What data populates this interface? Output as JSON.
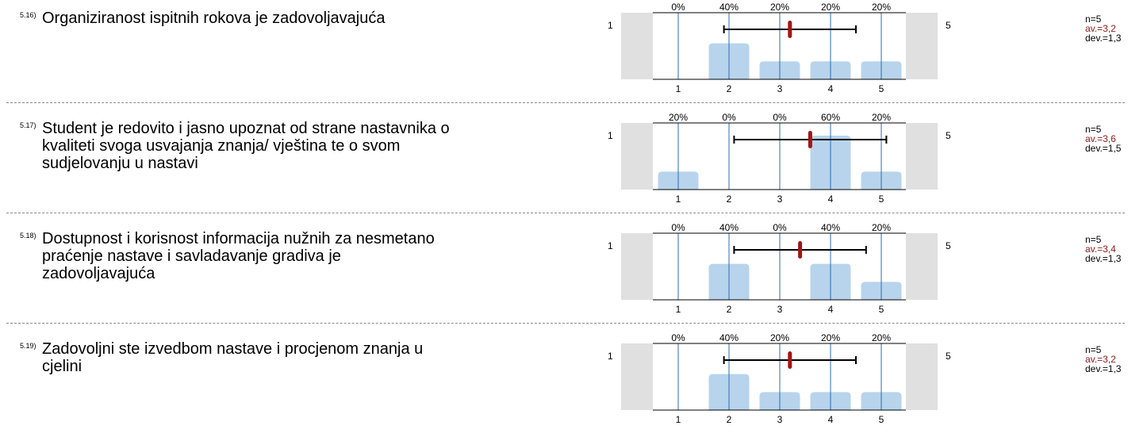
{
  "questions": [
    {
      "id": "5.16)",
      "text": "Organiziranost ispitnih rokova je zadovoljavajuća",
      "n": "n=5",
      "avg": "av.=3,2",
      "dev": "dev.=1,3"
    },
    {
      "id": "5.17)",
      "text": "Student je redovito i jasno upoznat od strane nastavnika o kvaliteti svoga usvajanja znanja/ vještina te o svom sudjelovanju u nastavi",
      "n": "n=5",
      "avg": "av.=3,6",
      "dev": "dev.=1,5"
    },
    {
      "id": "5.18)",
      "text": "Dostupnost i korisnost informacija nužnih za nesmetano praćenje nastave i savladavanje gradiva je zadovoljavajuća",
      "n": "n=5",
      "avg": "av.=3,4",
      "dev": "dev.=1,3"
    },
    {
      "id": "5.19)",
      "text": "Zadovoljni ste  izvedbom nastave i procjenom znanja u cjelini",
      "n": "n=5",
      "avg": "av.=3,2",
      "dev": "dev.=1,3"
    }
  ],
  "chart_data": [
    {
      "type": "bar",
      "categories": [
        "1",
        "2",
        "3",
        "4",
        "5"
      ],
      "values": [
        0,
        40,
        20,
        20,
        20
      ],
      "labels": [
        "0%",
        "40%",
        "20%",
        "20%",
        "20%"
      ],
      "mean": 3.2,
      "deviation": 1.3,
      "scale_left": "1",
      "scale_right": "5"
    },
    {
      "type": "bar",
      "categories": [
        "1",
        "2",
        "3",
        "4",
        "5"
      ],
      "values": [
        20,
        0,
        0,
        60,
        20
      ],
      "labels": [
        "20%",
        "0%",
        "0%",
        "60%",
        "20%"
      ],
      "mean": 3.6,
      "deviation": 1.5,
      "scale_left": "1",
      "scale_right": "5"
    },
    {
      "type": "bar",
      "categories": [
        "1",
        "2",
        "3",
        "4",
        "5"
      ],
      "values": [
        0,
        40,
        0,
        40,
        20
      ],
      "labels": [
        "0%",
        "40%",
        "0%",
        "40%",
        "20%"
      ],
      "mean": 3.4,
      "deviation": 1.3,
      "scale_left": "1",
      "scale_right": "5"
    },
    {
      "type": "bar",
      "categories": [
        "1",
        "2",
        "3",
        "4",
        "5"
      ],
      "values": [
        0,
        40,
        20,
        20,
        20
      ],
      "labels": [
        "0%",
        "40%",
        "20%",
        "20%",
        "20%"
      ],
      "mean": 3.2,
      "deviation": 1.3,
      "scale_left": "1",
      "scale_right": "5"
    }
  ],
  "colors": {
    "bar": "#b7d4ec",
    "gridline": "#2a6db5",
    "mean_marker": "#a31515",
    "side_box": "#e0e0e0"
  }
}
